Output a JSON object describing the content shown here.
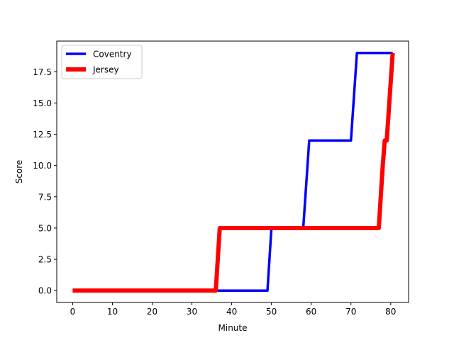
{
  "chart_data": {
    "type": "line",
    "xlabel": "Minute",
    "ylabel": "Score",
    "xlim": [
      -4,
      84.5
    ],
    "ylim": [
      -0.95,
      19.95
    ],
    "xticks": [
      0,
      10,
      20,
      30,
      40,
      50,
      60,
      70,
      80
    ],
    "yticks": [
      0.0,
      2.5,
      5.0,
      7.5,
      10.0,
      12.5,
      15.0,
      17.5
    ],
    "ytick_labels": [
      "0.0",
      "2.5",
      "5.0",
      "7.5",
      "10.0",
      "12.5",
      "15.0",
      "17.5"
    ],
    "grid": false,
    "legend": "upper left",
    "series": [
      {
        "name": "Coventry",
        "color": "#0000ff",
        "points": [
          [
            0,
            0
          ],
          [
            36,
            0
          ],
          [
            49,
            0
          ],
          [
            50,
            5
          ],
          [
            58,
            5
          ],
          [
            59.5,
            12
          ],
          [
            70,
            12
          ],
          [
            71.5,
            19
          ],
          [
            80.5,
            19
          ]
        ]
      },
      {
        "name": "Jersey",
        "color": "#ff0000",
        "points": [
          [
            0,
            0
          ],
          [
            36,
            0
          ],
          [
            37,
            5
          ],
          [
            77,
            5
          ],
          [
            78,
            10
          ],
          [
            78.5,
            12
          ],
          [
            79,
            12
          ],
          [
            80.5,
            19
          ]
        ]
      }
    ]
  }
}
